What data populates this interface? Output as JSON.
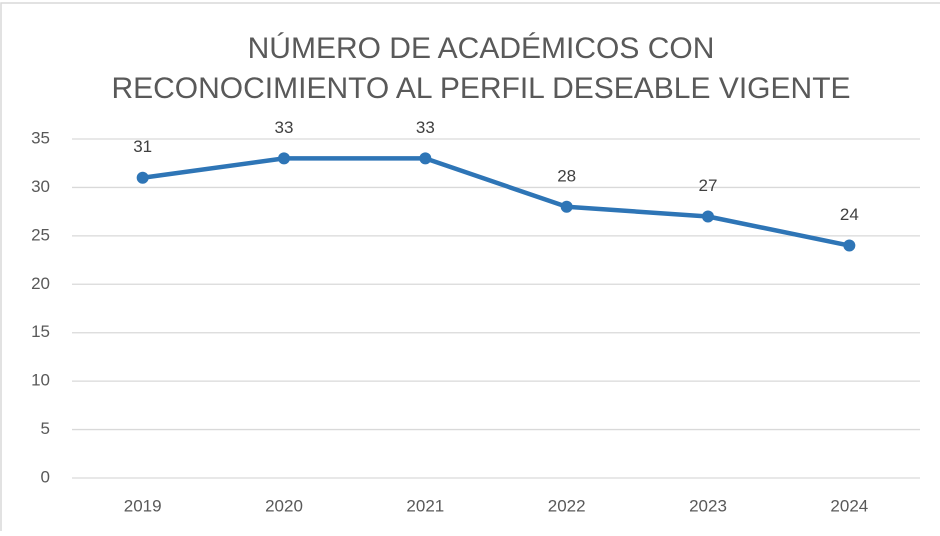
{
  "chart_data": {
    "type": "line",
    "title": [
      "NÚMERO DE ACADÉMICOS CON",
      "RECONOCIMIENTO AL PERFIL DESEABLE VIGENTE"
    ],
    "categories": [
      "2019",
      "2020",
      "2021",
      "2022",
      "2023",
      "2024"
    ],
    "values": [
      31,
      33,
      33,
      28,
      27,
      24
    ],
    "color": "#2e75b6",
    "ylim": [
      0,
      35
    ],
    "yticks": [
      0,
      5,
      10,
      15,
      20,
      25,
      30,
      35
    ],
    "grid": true
  }
}
